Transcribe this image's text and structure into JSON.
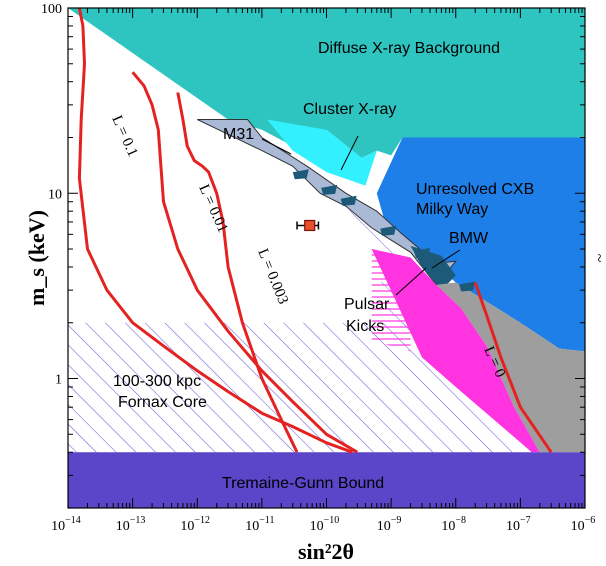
{
  "chart_data": {
    "type": "line",
    "xlabel": "sin²2θ",
    "ylabel": "m_s (keV)",
    "x_scale": "log",
    "y_scale": "log",
    "xlim": [
      1e-14,
      1e-06
    ],
    "ylim": [
      0.2,
      100
    ],
    "x_ticks": [
      {
        "base": "10",
        "exp": "−14",
        "value": 1e-14
      },
      {
        "base": "10",
        "exp": "−13",
        "value": 1e-13
      },
      {
        "base": "10",
        "exp": "−12",
        "value": 1e-12
      },
      {
        "base": "10",
        "exp": "−11",
        "value": 1e-11
      },
      {
        "base": "10",
        "exp": "−10",
        "value": 1e-10
      },
      {
        "base": "10",
        "exp": "−9",
        "value": 1e-09
      },
      {
        "base": "10",
        "exp": "−8",
        "value": 1e-08
      },
      {
        "base": "10",
        "exp": "−7",
        "value": 1e-07
      },
      {
        "base": "10",
        "exp": "−6",
        "value": 1e-06
      }
    ],
    "y_ticks": [
      {
        "label": "1",
        "value": 1
      },
      {
        "label": "10",
        "value": 10
      },
      {
        "label": "100",
        "value": 100
      }
    ],
    "right_edge_glyph": "~",
    "regions": [
      {
        "label": "Diffuse X-ray Background",
        "color": "#2ec4c0",
        "points": [
          [
            1e-14,
            100
          ],
          [
            1e-06,
            100
          ],
          [
            1e-06,
            20
          ],
          [
            1.5e-09,
            20
          ],
          [
            1e-09,
            16
          ],
          [
            6e-10,
            17
          ],
          [
            3.5e-10,
            15.5
          ],
          [
            1e-10,
            22
          ],
          [
            3e-11,
            18
          ],
          [
            1e-11,
            22
          ],
          [
            3e-12,
            25
          ],
          [
            1e-14,
            100
          ]
        ]
      },
      {
        "label": "Unresolved CXB Milky Way",
        "color": "#1f7fe8",
        "points": [
          [
            1.5e-09,
            20
          ],
          [
            1e-06,
            20
          ],
          [
            1e-06,
            1.4
          ],
          [
            4e-07,
            1.45
          ],
          [
            1e-07,
            2.0
          ],
          [
            3e-08,
            2.6
          ],
          [
            1e-08,
            3.3
          ],
          [
            2e-09,
            5.5
          ],
          [
            8e-10,
            7
          ],
          [
            6e-10,
            10
          ],
          [
            1.5e-09,
            20
          ]
        ]
      },
      {
        "label": "Cluster X-ray",
        "color": "#33f0ff",
        "points": [
          [
            1.2e-11,
            25
          ],
          [
            1e-10,
            22
          ],
          [
            3.5e-10,
            15.5
          ],
          [
            6e-10,
            17
          ],
          [
            4e-10,
            11
          ],
          [
            1e-10,
            13
          ],
          [
            3e-11,
            17
          ],
          [
            1.2e-11,
            25
          ]
        ]
      },
      {
        "label": "M31",
        "color": "#a9b9d6",
        "outline": "#333333",
        "points": [
          [
            1e-12,
            25
          ],
          [
            6e-12,
            25
          ],
          [
            1e-11,
            20
          ],
          [
            5e-11,
            14
          ],
          [
            2e-10,
            10
          ],
          [
            6e-10,
            8
          ],
          [
            1.5e-09,
            6
          ],
          [
            5e-09,
            4.2
          ],
          [
            1e-08,
            4.3
          ],
          [
            5e-09,
            3.2
          ],
          [
            2e-09,
            4.8
          ],
          [
            5e-10,
            6.5
          ],
          [
            2e-10,
            8.5
          ],
          [
            8e-11,
            10
          ],
          [
            3e-11,
            14
          ],
          [
            1e-11,
            17
          ],
          [
            1e-12,
            25
          ]
        ]
      },
      {
        "label": "BMW",
        "color": "#1d5a7a",
        "points": [
          [
            2e-09,
            5.2
          ],
          [
            6e-09,
            4.6
          ],
          [
            1e-08,
            3.6
          ],
          [
            6e-09,
            3.0
          ],
          [
            3e-09,
            4.0
          ],
          [
            2e-09,
            5.2
          ]
        ]
      },
      {
        "label": "Pulsar Kicks (gray)",
        "color": "#9e9e9e",
        "points": [
          [
            5e-09,
            3.2
          ],
          [
            1e-08,
            3.3
          ],
          [
            3e-08,
            2.6
          ],
          [
            1e-07,
            2.0
          ],
          [
            4e-07,
            1.45
          ],
          [
            1e-06,
            1.4
          ],
          [
            1e-06,
            0.4
          ],
          [
            2e-07,
            0.4
          ],
          [
            8e-08,
            0.7
          ],
          [
            3e-08,
            1.5
          ],
          [
            1.2e-08,
            2.4
          ],
          [
            5e-09,
            3.2
          ]
        ]
      },
      {
        "label": "Pulsar Kicks (magenta)",
        "color": "#ff33e0",
        "points": [
          [
            5e-10,
            5.0
          ],
          [
            2e-09,
            4.5
          ],
          [
            5e-09,
            3.2
          ],
          [
            1.2e-08,
            2.4
          ],
          [
            3e-08,
            1.5
          ],
          [
            8e-08,
            0.7
          ],
          [
            2e-07,
            0.4
          ],
          [
            1.5e-07,
            0.4
          ],
          [
            1e-08,
            0.9
          ],
          [
            3e-09,
            1.3
          ],
          [
            5e-10,
            5.0
          ]
        ]
      },
      {
        "label": "Tremaine-Gunn Bound",
        "color": "#5b45c8",
        "points": [
          [
            1e-14,
            0.4
          ],
          [
            1e-06,
            0.4
          ],
          [
            1e-06,
            0.2
          ],
          [
            1e-14,
            0.2
          ]
        ]
      }
    ],
    "hatched_region": {
      "label": "100-300 kpc Fornax Core",
      "color": "#6b5fd9"
    },
    "series": [
      {
        "name": "L = 0.1",
        "color": "#e52222",
        "x": [
          1.5e-14,
          1.7e-14,
          1.8e-14,
          1.6e-14,
          1.5e-14,
          2e-14,
          4e-14,
          1e-13,
          3e-13,
          1e-12,
          3e-12,
          1e-11,
          3e-11,
          1e-10,
          2.5e-10
        ],
        "y": [
          100,
          80,
          50,
          25,
          12,
          5,
          3,
          2,
          1.5,
          1.1,
          0.85,
          0.65,
          0.55,
          0.45,
          0.4
        ]
      },
      {
        "name": "L = 0.01",
        "color": "#e52222",
        "x": [
          1e-13,
          1.5e-13,
          2e-13,
          2.5e-13,
          2.7e-13,
          3e-13,
          5e-13,
          1e-12,
          3e-12,
          1e-11,
          3e-11,
          1e-10,
          3e-10
        ],
        "y": [
          45,
          38,
          30,
          22,
          15,
          9,
          5,
          3,
          1.8,
          1.1,
          0.75,
          0.5,
          0.4
        ]
      },
      {
        "name": "L = 0.003",
        "color": "#e52222",
        "x": [
          5e-13,
          6e-13,
          7e-13,
          9e-13,
          1.2e-12,
          1.5e-12,
          2e-12,
          2.5e-12,
          3e-12,
          5e-12,
          1e-11,
          2e-11,
          3.5e-11
        ],
        "y": [
          35,
          25,
          18,
          15,
          14,
          13,
          10,
          7,
          4,
          2,
          1,
          0.6,
          0.4
        ]
      },
      {
        "name": "L = 0",
        "color": "#e52222",
        "x": [
          2e-08,
          3e-08,
          5e-08,
          1e-07,
          3e-07
        ],
        "y": [
          3.3,
          2.2,
          1.3,
          0.7,
          0.4
        ]
      }
    ],
    "curve_labels": [
      {
        "text": "L = 0.1"
      },
      {
        "text": "L = 0.01"
      },
      {
        "text": "L = 0.003"
      },
      {
        "text": "L = 0"
      }
    ],
    "point": {
      "x": 5.5e-11,
      "y": 6.7,
      "x_low": 3.5e-11,
      "x_high": 7.5e-11,
      "color": "#e8502a",
      "edge": "#7a1010"
    },
    "annotations": [
      "Diffuse X-ray Background",
      "Cluster X-ray",
      "M31",
      "Unresolved CXB",
      "Milky Way",
      "BMW",
      "Pulsar",
      "Kicks",
      "100-300 kpc",
      "Fornax Core",
      "Tremaine-Gunn Bound"
    ]
  }
}
